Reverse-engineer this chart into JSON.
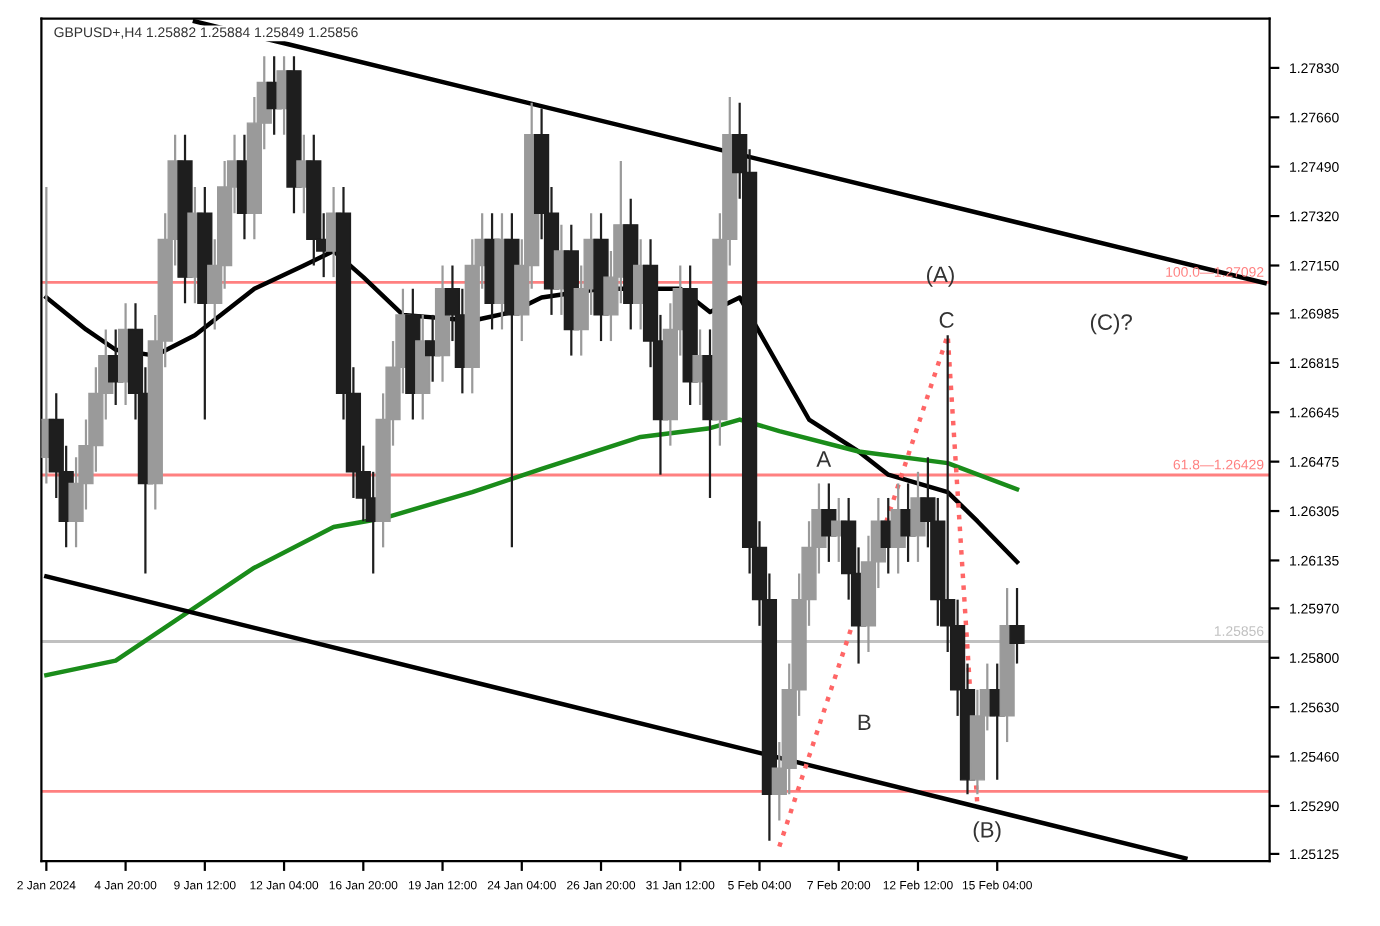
{
  "chart_data": {
    "type": "candlestick",
    "annotations": [
      "GBPUSD+,H4 1.25882 1.25884 1.25849 1.25856",
      "(A)",
      "C",
      "(C)?",
      "A",
      "B",
      "(B)"
    ],
    "categories": [
      "2 Jan 2024",
      null,
      null,
      null,
      null,
      null,
      null,
      null,
      "4 Jan 20:00",
      null,
      null,
      null,
      null,
      null,
      null,
      null,
      "9 Jan 12:00",
      null,
      null,
      null,
      null,
      null,
      null,
      null,
      "12 Jan 04:00",
      null,
      null,
      null,
      null,
      null,
      null,
      null,
      "16 Jan 20:00",
      null,
      null,
      null,
      null,
      null,
      null,
      null,
      "19 Jan 12:00",
      null,
      null,
      null,
      null,
      null,
      null,
      null,
      "24 Jan 04:00",
      null,
      null,
      null,
      null,
      null,
      null,
      null,
      "26 Jan 20:00",
      null,
      null,
      null,
      null,
      null,
      null,
      null,
      "31 Jan 12:00",
      null,
      null,
      null,
      null,
      null,
      null,
      null,
      "5 Feb 04:00",
      null,
      null,
      null,
      null,
      null,
      null,
      null,
      "7 Feb 20:00",
      null,
      null,
      null,
      null,
      null,
      null,
      null,
      "12 Feb 12:00",
      null,
      null,
      null,
      null,
      null,
      null,
      null,
      "15 Feb 04:00",
      null,
      null,
      null,
      null,
      null,
      null,
      null,
      null,
      null,
      null,
      null,
      null,
      null,
      null,
      null,
      null,
      null,
      null,
      null,
      null,
      null,
      null,
      null,
      null,
      null,
      null,
      null
    ],
    "ohlc": [
      [
        1.2649,
        1.2742,
        1.264,
        1.2662
      ],
      [
        1.2662,
        1.2671,
        1.2635,
        1.2644
      ],
      [
        1.2644,
        1.2653,
        1.2618,
        1.2627
      ],
      [
        1.2627,
        1.2649,
        1.2618,
        1.264
      ],
      [
        1.264,
        1.2662,
        1.2631,
        1.2653
      ],
      [
        1.2653,
        1.268,
        1.2644,
        1.2671
      ],
      [
        1.2671,
        1.2693,
        1.2662,
        1.2684
      ],
      [
        1.2684,
        1.2693,
        1.2667,
        1.2675
      ],
      [
        1.2675,
        1.2702,
        1.2667,
        1.2693
      ],
      [
        1.2693,
        1.2702,
        1.2662,
        1.2671
      ],
      [
        1.2671,
        1.268,
        1.2609,
        1.264
      ],
      [
        1.264,
        1.2698,
        1.2631,
        1.2689
      ],
      [
        1.2689,
        1.2733,
        1.268,
        1.2724
      ],
      [
        1.2724,
        1.276,
        1.2715,
        1.2751
      ],
      [
        1.2751,
        1.276,
        1.2702,
        1.2711
      ],
      [
        1.2711,
        1.2742,
        1.2702,
        1.2733
      ],
      [
        1.2733,
        1.2742,
        1.2662,
        1.2702
      ],
      [
        1.2702,
        1.2724,
        1.2693,
        1.2715
      ],
      [
        1.2715,
        1.2751,
        1.2707,
        1.2742
      ],
      [
        1.2742,
        1.276,
        1.2733,
        1.2751
      ],
      [
        1.2751,
        1.276,
        1.2724,
        1.2733
      ],
      [
        1.2733,
        1.2773,
        1.2724,
        1.2764
      ],
      [
        1.2764,
        1.2787,
        1.2755,
        1.2778
      ],
      [
        1.2778,
        1.2787,
        1.276,
        1.2769
      ],
      [
        1.2769,
        1.2787,
        1.276,
        1.2782
      ],
      [
        1.2782,
        1.2787,
        1.2733,
        1.2742
      ],
      [
        1.2742,
        1.276,
        1.2733,
        1.2751
      ],
      [
        1.2751,
        1.276,
        1.2715,
        1.2724
      ],
      [
        1.2724,
        1.2733,
        1.2711,
        1.272
      ],
      [
        1.272,
        1.2742,
        1.2711,
        1.2733
      ],
      [
        1.2733,
        1.2742,
        1.2662,
        1.2671
      ],
      [
        1.2671,
        1.268,
        1.2635,
        1.2644
      ],
      [
        1.2644,
        1.2653,
        1.2627,
        1.2635
      ],
      [
        1.2635,
        1.2644,
        1.2609,
        1.2627
      ],
      [
        1.2627,
        1.2671,
        1.2618,
        1.2662
      ],
      [
        1.2662,
        1.2689,
        1.2653,
        1.268
      ],
      [
        1.268,
        1.2707,
        1.2671,
        1.2698
      ],
      [
        1.2698,
        1.2707,
        1.2662,
        1.2671
      ],
      [
        1.2671,
        1.2698,
        1.2662,
        1.2689
      ],
      [
        1.2689,
        1.2698,
        1.2675,
        1.2684
      ],
      [
        1.2684,
        1.2715,
        1.2675,
        1.2707
      ],
      [
        1.2707,
        1.2715,
        1.2689,
        1.2698
      ],
      [
        1.2698,
        1.2707,
        1.2671,
        1.268
      ],
      [
        1.268,
        1.2724,
        1.2671,
        1.2715
      ],
      [
        1.2715,
        1.2733,
        1.2707,
        1.2724
      ],
      [
        1.2724,
        1.2733,
        1.2693,
        1.2702
      ],
      [
        1.2702,
        1.2733,
        1.2693,
        1.2724
      ],
      [
        1.2724,
        1.2733,
        1.2618,
        1.2698
      ],
      [
        1.2698,
        1.2724,
        1.2689,
        1.2715
      ],
      [
        1.2715,
        1.2771,
        1.2707,
        1.276
      ],
      [
        1.276,
        1.2769,
        1.2724,
        1.2733
      ],
      [
        1.2733,
        1.2742,
        1.2698,
        1.2707
      ],
      [
        1.2707,
        1.2729,
        1.2698,
        1.272
      ],
      [
        1.272,
        1.2729,
        1.2684,
        1.2693
      ],
      [
        1.2693,
        1.2715,
        1.2684,
        1.2707
      ],
      [
        1.2707,
        1.2733,
        1.2698,
        1.2724
      ],
      [
        1.2724,
        1.2733,
        1.2689,
        1.2698
      ],
      [
        1.2698,
        1.272,
        1.2689,
        1.2711
      ],
      [
        1.2711,
        1.2751,
        1.2702,
        1.2729
      ],
      [
        1.2729,
        1.2738,
        1.2693,
        1.2702
      ],
      [
        1.2702,
        1.2724,
        1.2693,
        1.2715
      ],
      [
        1.2715,
        1.2724,
        1.268,
        1.2689
      ],
      [
        1.2689,
        1.2698,
        1.2643,
        1.2662
      ],
      [
        1.2662,
        1.2702,
        1.2653,
        1.2693
      ],
      [
        1.2693,
        1.2715,
        1.2684,
        1.2707
      ],
      [
        1.2707,
        1.2715,
        1.2667,
        1.2675
      ],
      [
        1.2675,
        1.2693,
        1.2667,
        1.2684
      ],
      [
        1.2684,
        1.2693,
        1.2635,
        1.2662
      ],
      [
        1.2662,
        1.2733,
        1.2653,
        1.2724
      ],
      [
        1.2724,
        1.2773,
        1.2715,
        1.276
      ],
      [
        1.276,
        1.2771,
        1.2738,
        1.2747
      ],
      [
        1.2747,
        1.2755,
        1.2609,
        1.2618
      ],
      [
        1.2618,
        1.2627,
        1.2591,
        1.26
      ],
      [
        1.26,
        1.2609,
        1.2517,
        1.2533
      ],
      [
        1.2533,
        1.2551,
        1.2524,
        1.2542
      ],
      [
        1.2542,
        1.2578,
        1.2533,
        1.2569
      ],
      [
        1.2569,
        1.2609,
        1.256,
        1.26
      ],
      [
        1.26,
        1.2627,
        1.2591,
        1.2618
      ],
      [
        1.2618,
        1.264,
        1.2609,
        1.2631
      ],
      [
        1.2631,
        1.264,
        1.2613,
        1.2622
      ],
      [
        1.2622,
        1.2635,
        1.2613,
        1.2627
      ],
      [
        1.2627,
        1.2635,
        1.26,
        1.2609
      ],
      [
        1.2609,
        1.2618,
        1.2578,
        1.2591
      ],
      [
        1.2591,
        1.2622,
        1.2582,
        1.2613
      ],
      [
        1.2613,
        1.2635,
        1.2604,
        1.2627
      ],
      [
        1.2627,
        1.2635,
        1.2609,
        1.2618
      ],
      [
        1.2618,
        1.264,
        1.2609,
        1.2631
      ],
      [
        1.2631,
        1.264,
        1.2613,
        1.2622
      ],
      [
        1.2622,
        1.2644,
        1.2613,
        1.2635
      ],
      [
        1.2635,
        1.2649,
        1.2618,
        1.2627
      ],
      [
        1.2627,
        1.2635,
        1.2591,
        1.26
      ],
      [
        1.26,
        1.2691,
        1.2582,
        1.2591
      ],
      [
        1.2591,
        1.26,
        1.256,
        1.2569
      ],
      [
        1.2569,
        1.2578,
        1.2533,
        1.2538
      ],
      [
        1.2538,
        1.2569,
        1.2533,
        1.256
      ],
      [
        1.256,
        1.2578,
        1.2555,
        1.2569
      ],
      [
        1.2569,
        1.2578,
        1.2538,
        1.256
      ],
      [
        1.256,
        1.2604,
        1.2551,
        1.2591
      ],
      [
        1.2591,
        1.2604,
        1.2578,
        1.2585
      ],
      null,
      null,
      null,
      null,
      null,
      null,
      null,
      null,
      null,
      null,
      null,
      null,
      null,
      null,
      null,
      null,
      null,
      null,
      null,
      null,
      null,
      null,
      null,
      null,
      null
    ],
    "series": [
      {
        "type": "line",
        "color": "#000000",
        "values": [
          1.2704,
          null,
          null,
          null,
          1.2693,
          null,
          null,
          1.2686,
          null,
          null,
          null,
          1.2684,
          null,
          null,
          null,
          1.2691,
          null,
          null,
          null,
          null,
          null,
          1.2707,
          null,
          null,
          null,
          null,
          1.2715,
          null,
          null,
          1.272,
          null,
          null,
          1.2711,
          null,
          null,
          null,
          1.2698,
          null,
          null,
          null,
          null,
          null,
          null,
          1.2696,
          null,
          null,
          null,
          1.2699,
          null,
          null,
          1.2704,
          null,
          null,
          null,
          null,
          null,
          1.2707,
          null,
          null,
          null,
          1.2707,
          null,
          null,
          null,
          1.2707,
          null,
          null,
          1.2699,
          null,
          null,
          1.2704,
          null,
          null,
          1.2686,
          null,
          null,
          null,
          1.2662,
          null,
          null,
          null,
          null,
          1.2651,
          null,
          null,
          1.2643,
          null,
          null,
          null,
          null,
          null,
          1.2637,
          null,
          null,
          1.2627,
          null,
          null,
          null,
          1.2613,
          null,
          null,
          null,
          null,
          null,
          null,
          null,
          null,
          null,
          null,
          null,
          null,
          null,
          null,
          null,
          null,
          null,
          null,
          null,
          null,
          null,
          null,
          null,
          null,
          null
        ]
      },
      {
        "type": "line",
        "color": "#1a8c1a",
        "values": [
          1.2574,
          null,
          null,
          null,
          null,
          null,
          null,
          1.2579,
          null,
          null,
          null,
          null,
          null,
          null,
          1.2595,
          null,
          null,
          null,
          null,
          null,
          null,
          1.2611,
          null,
          null,
          null,
          null,
          null,
          null,
          null,
          1.2625,
          null,
          null,
          null,
          null,
          1.2628,
          null,
          null,
          null,
          null,
          null,
          null,
          null,
          null,
          1.2637,
          null,
          null,
          null,
          null,
          null,
          null,
          1.2645,
          null,
          null,
          null,
          null,
          null,
          null,
          null,
          null,
          null,
          1.2656,
          null,
          null,
          null,
          null,
          null,
          null,
          1.2659,
          null,
          null,
          1.2662,
          null,
          null,
          null,
          1.2658,
          null,
          null,
          null,
          null,
          null,
          null,
          null,
          1.2651,
          null,
          null,
          null,
          null,
          null,
          null,
          null,
          null,
          1.2647,
          null,
          null,
          null,
          null,
          null,
          null,
          1.2638,
          null,
          null,
          null,
          null,
          null,
          null,
          null,
          null,
          null,
          null,
          null,
          null,
          null,
          null,
          null,
          null,
          null,
          null,
          null,
          null,
          null,
          null,
          null,
          null,
          null
        ]
      },
      {
        "type": "line",
        "color": "#000000",
        "values": [
          null,
          null,
          null,
          null,
          null,
          null,
          null,
          null,
          null,
          null,
          null,
          null,
          null,
          null,
          null,
          1.2799,
          null,
          null,
          null,
          null,
          null,
          null,
          null,
          null,
          null,
          null,
          null,
          null,
          null,
          null,
          null,
          null,
          null,
          null,
          null,
          null,
          null,
          null,
          null,
          null,
          null,
          null,
          null,
          null,
          null,
          null,
          null,
          null,
          null,
          null,
          null,
          null,
          null,
          null,
          null,
          null,
          null,
          null,
          null,
          null,
          null,
          null,
          null,
          null,
          null,
          null,
          null,
          null,
          null,
          null,
          null,
          null,
          null,
          null,
          null,
          null,
          null,
          null,
          null,
          null,
          null,
          null,
          null,
          null,
          null,
          null,
          null,
          null,
          null,
          null,
          null,
          null,
          null,
          null,
          null,
          null,
          null,
          null,
          null,
          null,
          null,
          null,
          null,
          null,
          null,
          null,
          null,
          null,
          null,
          null,
          null,
          null,
          null,
          null,
          null,
          null,
          null,
          null,
          null,
          null,
          null,
          null,
          null,
          1.2709
        ]
      },
      {
        "type": "line",
        "color": "#000000",
        "values": [
          1.2608,
          null,
          null,
          null,
          null,
          null,
          null,
          null,
          null,
          null,
          null,
          null,
          null,
          null,
          null,
          null,
          null,
          null,
          null,
          null,
          null,
          null,
          null,
          null,
          null,
          null,
          null,
          null,
          null,
          null,
          null,
          null,
          null,
          null,
          null,
          null,
          null,
          null,
          null,
          null,
          null,
          null,
          null,
          null,
          null,
          null,
          null,
          null,
          null,
          null,
          null,
          null,
          null,
          null,
          null,
          null,
          null,
          null,
          null,
          null,
          null,
          null,
          null,
          null,
          null,
          null,
          null,
          null,
          null,
          null,
          null,
          null,
          null,
          null,
          null,
          null,
          null,
          null,
          null,
          null,
          null,
          null,
          null,
          null,
          null,
          null,
          null,
          null,
          null,
          null,
          null,
          null,
          null,
          null,
          null,
          null,
          null,
          null,
          null,
          null,
          null,
          null,
          null,
          null,
          null,
          null,
          null,
          null,
          null,
          null,
          null,
          null,
          null,
          null,
          null,
          1.2511,
          null,
          null,
          null,
          null,
          null,
          null,
          null,
          null
        ]
      },
      {
        "type": "line",
        "color": "#ff6666",
        "line_style": "dotted",
        "values": [
          null,
          null,
          null,
          null,
          null,
          null,
          null,
          null,
          null,
          null,
          null,
          null,
          null,
          null,
          null,
          null,
          null,
          null,
          null,
          null,
          null,
          null,
          null,
          null,
          null,
          null,
          null,
          null,
          null,
          null,
          null,
          null,
          null,
          null,
          null,
          null,
          null,
          null,
          null,
          null,
          null,
          null,
          null,
          null,
          null,
          null,
          null,
          null,
          null,
          null,
          null,
          null,
          null,
          null,
          null,
          null,
          null,
          null,
          null,
          null,
          null,
          null,
          null,
          null,
          null,
          null,
          null,
          null,
          null,
          null,
          null,
          null,
          null,
          null,
          1.2515,
          null,
          null,
          null,
          null,
          null,
          null,
          null,
          null,
          null,
          null,
          null,
          null,
          null,
          null,
          null,
          null,
          1.2691,
          null,
          null,
          1.2529,
          null,
          null,
          null,
          null,
          null,
          null,
          null,
          null,
          null,
          null,
          null,
          null,
          null,
          null,
          null,
          null,
          null,
          null,
          null,
          null,
          null,
          null,
          null,
          null,
          null,
          null,
          null,
          null,
          null
        ]
      }
    ],
    "ref_lines": [
      {
        "axis": "y",
        "value": 1.27092,
        "label": "100.0—1.27092",
        "color": "#ff8080"
      },
      {
        "axis": "y",
        "value": 1.26429,
        "label": "61.8—1.26429",
        "color": "#ff8080"
      },
      {
        "axis": "y",
        "value": 1.2534,
        "color": "#ff8080"
      },
      {
        "axis": "y",
        "value": 1.25856,
        "label": "1.25856",
        "color": "#c0c0c0"
      }
    ],
    "ylim": [
      1.251,
      1.28
    ],
    "yticks": [
      {
        "value": 1.25125,
        "label": "1.25125"
      },
      {
        "value": 1.2529,
        "label": "1.25290"
      },
      {
        "value": 1.2546,
        "label": "1.25460"
      },
      {
        "value": 1.2563,
        "label": "1.25630"
      },
      {
        "value": 1.258,
        "label": "1.25800"
      },
      {
        "value": 1.2597,
        "label": "1.25970"
      },
      {
        "value": 1.26135,
        "label": "1.26135"
      },
      {
        "value": 1.26305,
        "label": "1.26305"
      },
      {
        "value": 1.26475,
        "label": "1.26475"
      },
      {
        "value": 1.26645,
        "label": "1.26645"
      },
      {
        "value": 1.26815,
        "label": "1.26815"
      },
      {
        "value": 1.26985,
        "label": "1.26985"
      },
      {
        "value": 1.2715,
        "label": "1.27150"
      },
      {
        "value": 1.2732,
        "label": "1.27320"
      },
      {
        "value": 1.2749,
        "label": "1.27490"
      },
      {
        "value": 1.2766,
        "label": "1.27660"
      },
      {
        "value": 1.2783,
        "label": "1.27830"
      }
    ],
    "grid": false,
    "legend": false
  }
}
